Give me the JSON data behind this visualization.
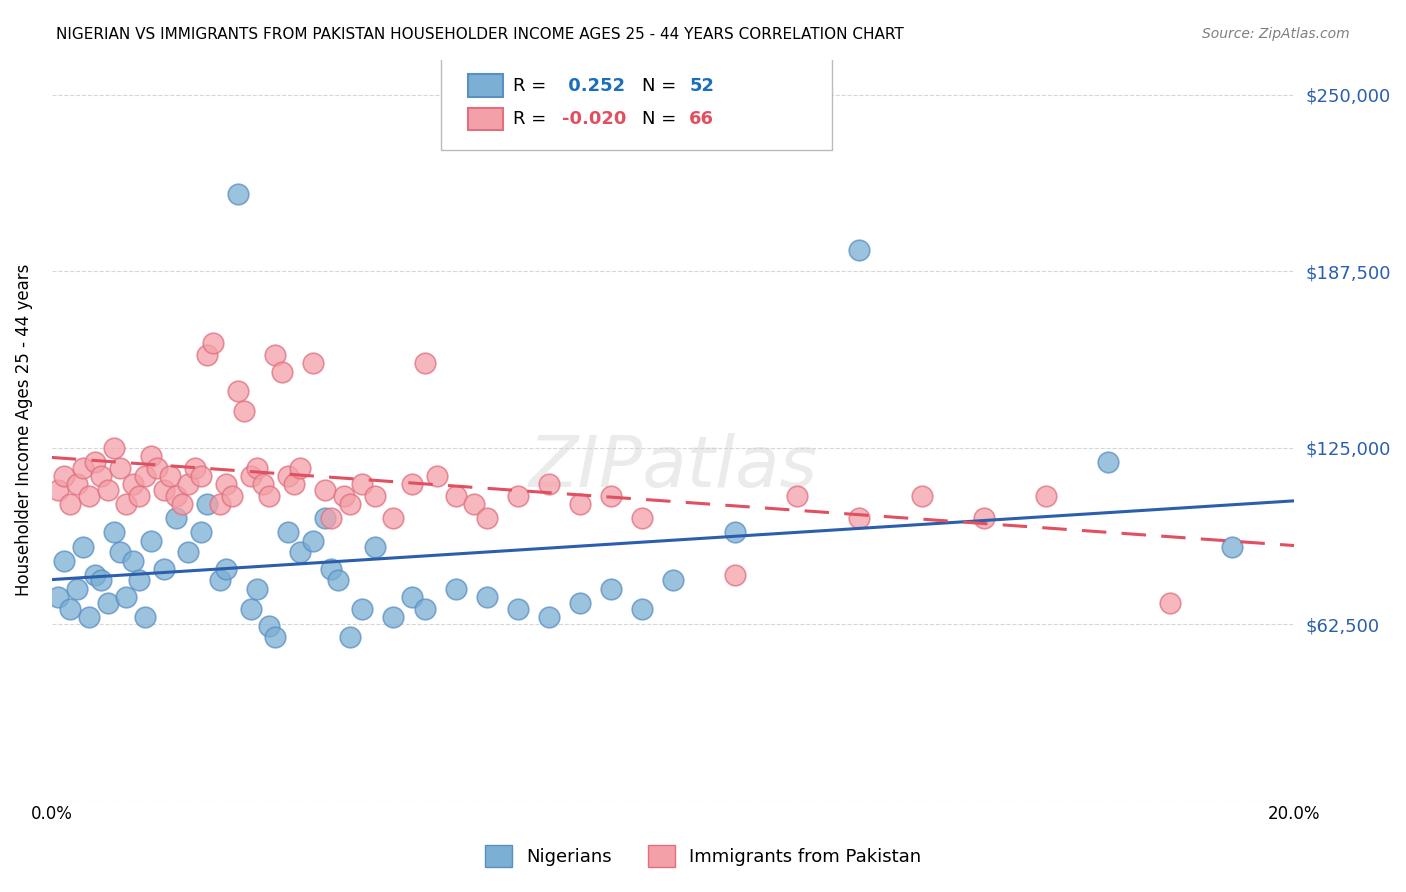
{
  "title": "NIGERIAN VS IMMIGRANTS FROM PAKISTAN HOUSEHOLDER INCOME AGES 25 - 44 YEARS CORRELATION CHART",
  "source": "Source: ZipAtlas.com",
  "ylabel": "Householder Income Ages 25 - 44 years",
  "xmin": 0.0,
  "xmax": 0.2,
  "ymin": 0,
  "ymax": 262500,
  "yticks": [
    0,
    62500,
    125000,
    187500,
    250000
  ],
  "ytick_labels": [
    "",
    "$62,500",
    "$125,000",
    "$187,500",
    "$250,000"
  ],
  "xticks": [
    0.0,
    0.04,
    0.08,
    0.12,
    0.16,
    0.2
  ],
  "xtick_labels": [
    "0.0%",
    "",
    "",
    "",
    "",
    "20.0%"
  ],
  "grid_color": "#cccccc",
  "background_color": "#ffffff",
  "nigerian_color": "#7bafd4",
  "nigerian_edge_color": "#5a8fc4",
  "pakistan_color": "#f4a0a8",
  "pakistan_edge_color": "#e07080",
  "nigerian_line_color": "#2b5fad",
  "pakistan_line_color": "#e05060",
  "nigerian_R": 0.252,
  "nigerian_N": 52,
  "pakistan_R": -0.02,
  "pakistan_N": 66,
  "watermark": "ZIPatlas",
  "legend_label_nigerian": "Nigerians",
  "legend_label_pakistan": "Immigrants from Pakistan",
  "nigerian_scatter": [
    [
      0.001,
      72000
    ],
    [
      0.002,
      85000
    ],
    [
      0.003,
      68000
    ],
    [
      0.004,
      75000
    ],
    [
      0.005,
      90000
    ],
    [
      0.006,
      65000
    ],
    [
      0.007,
      80000
    ],
    [
      0.008,
      78000
    ],
    [
      0.009,
      70000
    ],
    [
      0.01,
      95000
    ],
    [
      0.011,
      88000
    ],
    [
      0.012,
      72000
    ],
    [
      0.013,
      85000
    ],
    [
      0.014,
      78000
    ],
    [
      0.015,
      65000
    ],
    [
      0.016,
      92000
    ],
    [
      0.018,
      82000
    ],
    [
      0.02,
      100000
    ],
    [
      0.022,
      88000
    ],
    [
      0.024,
      95000
    ],
    [
      0.025,
      105000
    ],
    [
      0.027,
      78000
    ],
    [
      0.028,
      82000
    ],
    [
      0.03,
      215000
    ],
    [
      0.032,
      68000
    ],
    [
      0.033,
      75000
    ],
    [
      0.035,
      62000
    ],
    [
      0.036,
      58000
    ],
    [
      0.038,
      95000
    ],
    [
      0.04,
      88000
    ],
    [
      0.042,
      92000
    ],
    [
      0.044,
      100000
    ],
    [
      0.045,
      82000
    ],
    [
      0.046,
      78000
    ],
    [
      0.048,
      58000
    ],
    [
      0.05,
      68000
    ],
    [
      0.052,
      90000
    ],
    [
      0.055,
      65000
    ],
    [
      0.058,
      72000
    ],
    [
      0.06,
      68000
    ],
    [
      0.065,
      75000
    ],
    [
      0.07,
      72000
    ],
    [
      0.075,
      68000
    ],
    [
      0.08,
      65000
    ],
    [
      0.085,
      70000
    ],
    [
      0.09,
      75000
    ],
    [
      0.095,
      68000
    ],
    [
      0.1,
      78000
    ],
    [
      0.11,
      95000
    ],
    [
      0.13,
      195000
    ],
    [
      0.17,
      120000
    ],
    [
      0.19,
      90000
    ]
  ],
  "pakistan_scatter": [
    [
      0.001,
      110000
    ],
    [
      0.002,
      115000
    ],
    [
      0.003,
      105000
    ],
    [
      0.004,
      112000
    ],
    [
      0.005,
      118000
    ],
    [
      0.006,
      108000
    ],
    [
      0.007,
      120000
    ],
    [
      0.008,
      115000
    ],
    [
      0.009,
      110000
    ],
    [
      0.01,
      125000
    ],
    [
      0.011,
      118000
    ],
    [
      0.012,
      105000
    ],
    [
      0.013,
      112000
    ],
    [
      0.014,
      108000
    ],
    [
      0.015,
      115000
    ],
    [
      0.016,
      122000
    ],
    [
      0.017,
      118000
    ],
    [
      0.018,
      110000
    ],
    [
      0.019,
      115000
    ],
    [
      0.02,
      108000
    ],
    [
      0.021,
      105000
    ],
    [
      0.022,
      112000
    ],
    [
      0.023,
      118000
    ],
    [
      0.024,
      115000
    ],
    [
      0.025,
      158000
    ],
    [
      0.026,
      162000
    ],
    [
      0.027,
      105000
    ],
    [
      0.028,
      112000
    ],
    [
      0.029,
      108000
    ],
    [
      0.03,
      145000
    ],
    [
      0.031,
      138000
    ],
    [
      0.032,
      115000
    ],
    [
      0.033,
      118000
    ],
    [
      0.034,
      112000
    ],
    [
      0.035,
      108000
    ],
    [
      0.036,
      158000
    ],
    [
      0.037,
      152000
    ],
    [
      0.038,
      115000
    ],
    [
      0.039,
      112000
    ],
    [
      0.04,
      118000
    ],
    [
      0.042,
      155000
    ],
    [
      0.044,
      110000
    ],
    [
      0.045,
      100000
    ],
    [
      0.047,
      108000
    ],
    [
      0.048,
      105000
    ],
    [
      0.05,
      112000
    ],
    [
      0.052,
      108000
    ],
    [
      0.055,
      100000
    ],
    [
      0.058,
      112000
    ],
    [
      0.06,
      155000
    ],
    [
      0.062,
      115000
    ],
    [
      0.065,
      108000
    ],
    [
      0.068,
      105000
    ],
    [
      0.07,
      100000
    ],
    [
      0.075,
      108000
    ],
    [
      0.08,
      112000
    ],
    [
      0.085,
      105000
    ],
    [
      0.09,
      108000
    ],
    [
      0.095,
      100000
    ],
    [
      0.11,
      80000
    ],
    [
      0.12,
      108000
    ],
    [
      0.13,
      100000
    ],
    [
      0.14,
      108000
    ],
    [
      0.15,
      100000
    ],
    [
      0.16,
      108000
    ],
    [
      0.18,
      70000
    ]
  ]
}
